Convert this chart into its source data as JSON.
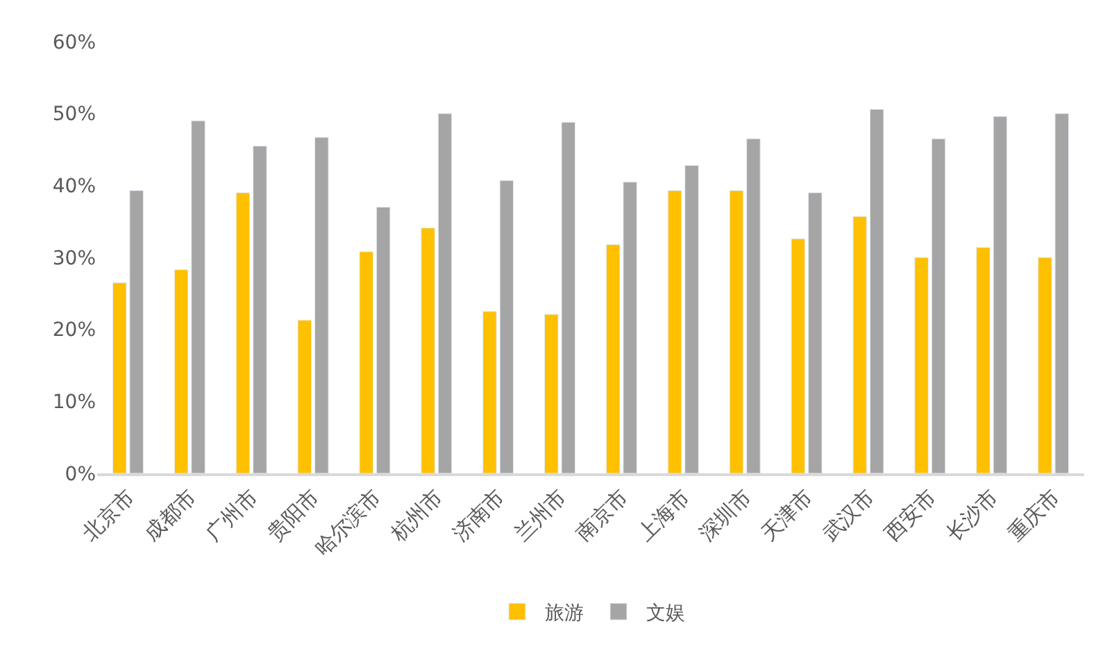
{
  "chart_data": {
    "type": "bar",
    "categories": [
      "北京市",
      "成都市",
      "广州市",
      "贵阳市",
      "哈尔滨市",
      "杭州市",
      "济南市",
      "兰州市",
      "南京市",
      "上海市",
      "深圳市",
      "天津市",
      "武汉市",
      "西安市",
      "长沙市",
      "重庆市"
    ],
    "series": [
      {
        "name": "旅游",
        "color": "#ffc000",
        "values": [
          26.5,
          28.3,
          39.0,
          21.3,
          30.8,
          34.1,
          22.5,
          22.1,
          31.8,
          39.3,
          39.3,
          32.6,
          35.7,
          30.0,
          31.4,
          30.0
        ]
      },
      {
        "name": "文娱",
        "color": "#a5a5a5",
        "values": [
          39.3,
          49.0,
          45.5,
          46.7,
          37.0,
          50.0,
          40.7,
          48.8,
          40.5,
          42.8,
          46.5,
          39.0,
          50.6,
          46.5,
          49.6,
          50.0
        ]
      }
    ],
    "ylim": [
      0,
      60
    ],
    "yticks": [
      {
        "value": 0,
        "label": "0%"
      },
      {
        "value": 10,
        "label": "10%"
      },
      {
        "value": 20,
        "label": "20%"
      },
      {
        "value": 30,
        "label": "30%"
      },
      {
        "value": 40,
        "label": "40%"
      },
      {
        "value": 50,
        "label": "50%"
      },
      {
        "value": 60,
        "label": "60%"
      }
    ],
    "grid": false,
    "legend": "bottom"
  }
}
